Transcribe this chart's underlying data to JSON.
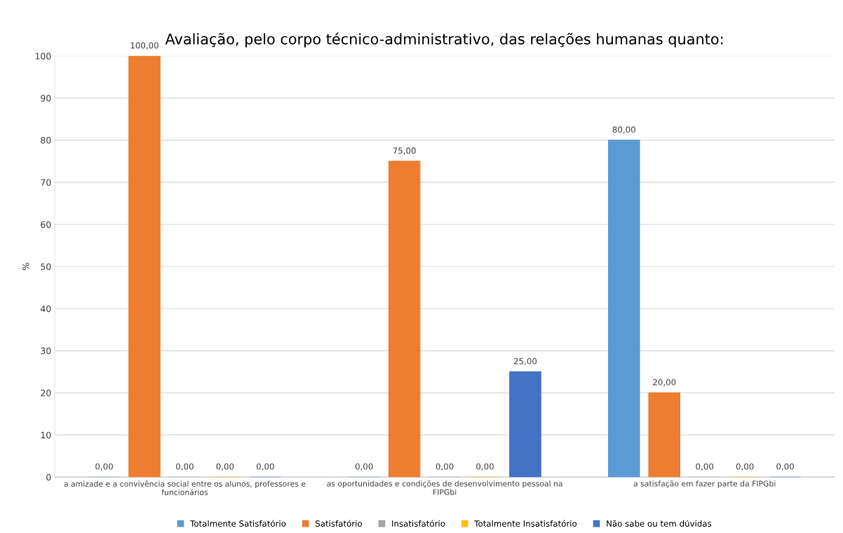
{
  "chart_data": {
    "type": "bar",
    "title": "Avaliação, pelo corpo técnico-administrativo, das relações humanas quanto:",
    "ylabel": "%",
    "categories": [
      "a amizade e a convivência social entre os alunos, professores e\nfuncionários",
      "as oportunidades e condições de desenvolvimento pessoal na\nFIPGbi",
      "a satisfação em fazer parte da FIPGbi"
    ],
    "series": [
      {
        "name": "Totalmente Satisfatório",
        "color": "#5b9bd5",
        "values": [
          0,
          0,
          80
        ],
        "value_labels": [
          "0,00",
          "0,00",
          "80,00"
        ]
      },
      {
        "name": "Satisfatório",
        "color": "#ed7d31",
        "values": [
          100,
          75,
          20
        ],
        "value_labels": [
          "100,00",
          "75,00",
          "20,00"
        ]
      },
      {
        "name": "Insatisfatório",
        "color": "#a5a5a5",
        "values": [
          0,
          0,
          0
        ],
        "value_labels": [
          "0,00",
          "0,00",
          "0,00"
        ]
      },
      {
        "name": "Totalmente Insatisfatório",
        "color": "#ffc000",
        "values": [
          0,
          0,
          0
        ],
        "value_labels": [
          "0,00",
          "0,00",
          "0,00"
        ]
      },
      {
        "name": "Não sabe ou tem dúvidas",
        "color": "#4472c4",
        "values": [
          0,
          25,
          0
        ],
        "value_labels": [
          "0,00",
          "25,00",
          "0,00"
        ]
      }
    ],
    "ylim": [
      0,
      100
    ],
    "yticks": [
      0,
      10,
      20,
      30,
      40,
      50,
      60,
      70,
      80,
      90,
      100
    ],
    "grid": "y",
    "legend": "bottom"
  }
}
